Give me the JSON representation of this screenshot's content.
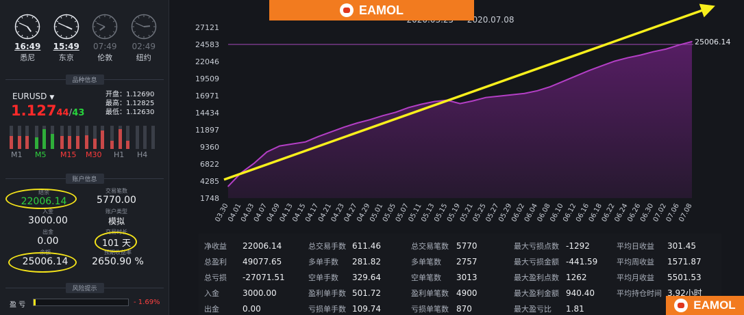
{
  "clocks": [
    {
      "time": "16:49",
      "city": "悉尼",
      "active": true
    },
    {
      "time": "15:49",
      "city": "东京",
      "active": true
    },
    {
      "time": "07:49",
      "city": "伦敦",
      "active": false
    },
    {
      "time": "02:49",
      "city": "纽约",
      "active": false
    }
  ],
  "sections": {
    "symbol_info": "品种信息",
    "account_info": "账户信息",
    "risk": "风险提示"
  },
  "symbol": {
    "name": "EURUSD",
    "price_big": "1.127",
    "price_sub1": "44",
    "price_sep": "/",
    "price_sub2": "43",
    "open": "开盘：1.12690",
    "high": "最高：1.12825",
    "low": "最低：1.12630"
  },
  "timeframes": [
    {
      "label": "M1",
      "up": [
        0.55,
        0.55,
        0.55
      ],
      "color": "#c94848"
    },
    {
      "label": "M5",
      "up": [
        0.5,
        0.85,
        0.65
      ],
      "color": "#2fae3a"
    },
    {
      "label": "M15",
      "up": [
        0.55,
        0.55,
        0.55
      ],
      "color": "#c94848"
    },
    {
      "label": "M30",
      "up": [
        0.6,
        0.45,
        0.8
      ],
      "color": "#c94848"
    },
    {
      "label": "H1",
      "up": [
        0.35,
        0.85,
        0.35
      ],
      "color": "#c94848"
    },
    {
      "label": "H4",
      "up": [
        0,
        0,
        0
      ],
      "color": "#444"
    }
  ],
  "timeframe_colors": [
    "#8c929c",
    "#2fd13f",
    "#ff3b3b",
    "#ff3b3b",
    "#8c929c",
    "#8c929c"
  ],
  "account": {
    "equity_label": "结余",
    "equity": "22006.14",
    "trades_label": "交易笔数",
    "trades": "5770.00",
    "deposit_label": "入金",
    "deposit": "3000.00",
    "acc_type_label": "账户类型",
    "acc_type": "模拟",
    "withdraw_label": "出金",
    "withdraw": "0.00",
    "days_label": "交易时长",
    "days": "101 天",
    "balance_label": "余额",
    "balance": "25006.14",
    "ratio_label": "预期收益率",
    "ratio": "2650.90 %"
  },
  "risk": {
    "label": "盈 亏",
    "value": "- 1.69%"
  },
  "brand": {
    "name": "EAMOL"
  },
  "chart_data": {
    "type": "area",
    "title": "2020.03.25 — 2020.07.08",
    "x": [
      "03.30",
      "04.01",
      "04.03",
      "04.07",
      "04.09",
      "04.13",
      "04.15",
      "04.17",
      "04.21",
      "04.23",
      "04.27",
      "04.29",
      "05.01",
      "05.05",
      "05.07",
      "05.11",
      "05.13",
      "05.15",
      "05.19",
      "05.21",
      "05.25",
      "05.27",
      "05.29",
      "06.02",
      "06.04",
      "06.08",
      "06.10",
      "06.12",
      "06.16",
      "06.18",
      "06.22",
      "06.24",
      "06.26",
      "06.30",
      "07.02",
      "07.06",
      "07.08"
    ],
    "y": [
      3500,
      5500,
      6900,
      8600,
      9500,
      9800,
      10100,
      10900,
      11600,
      12300,
      12900,
      13400,
      14000,
      14500,
      15200,
      15700,
      16100,
      16300,
      15800,
      16200,
      16700,
      16900,
      17100,
      17300,
      17700,
      18300,
      19100,
      19900,
      20700,
      21400,
      22100,
      22600,
      23000,
      23500,
      23900,
      24500,
      25006.14
    ],
    "yticks": [
      1748,
      4285,
      6822,
      9360,
      11897,
      14434,
      16971,
      19509,
      22046,
      24583,
      27121
    ],
    "ylim": [
      1748,
      27121
    ],
    "last_value_label": "25006.14",
    "ref_line": 24583,
    "trend_arrow": true,
    "grid": false,
    "colors": {
      "line": "#b43fc6",
      "fill": "#5a1e68",
      "arrow": "#f8ef1c",
      "ref": "#8a3f9b"
    }
  },
  "stats": [
    [
      {
        "k": "净收益",
        "v": "22006.14"
      },
      {
        "k": "总盈利",
        "v": "49077.65"
      },
      {
        "k": "总亏损",
        "v": "-27071.51"
      },
      {
        "k": "入金",
        "v": "3000.00"
      },
      {
        "k": "出金",
        "v": "0.00"
      }
    ],
    [
      {
        "k": "总交易手数",
        "v": "611.46"
      },
      {
        "k": "多单手数",
        "v": "281.82"
      },
      {
        "k": "空单手数",
        "v": "329.64"
      },
      {
        "k": "盈利单手数",
        "v": "501.72"
      },
      {
        "k": "亏损单手数",
        "v": "109.74"
      }
    ],
    [
      {
        "k": "总交易笔数",
        "v": "5770"
      },
      {
        "k": "多单笔数",
        "v": "2757"
      },
      {
        "k": "空单笔数",
        "v": "3013"
      },
      {
        "k": "盈利单笔数",
        "v": "4900"
      },
      {
        "k": "亏损单笔数",
        "v": "870"
      }
    ],
    [
      {
        "k": "最大亏损点数",
        "v": "-1292"
      },
      {
        "k": "最大亏损金额",
        "v": "-441.59"
      },
      {
        "k": "最大盈利点数",
        "v": "1262"
      },
      {
        "k": "最大盈利金额",
        "v": "940.40"
      },
      {
        "k": "最大盈亏比",
        "v": "1.81"
      }
    ],
    [
      {
        "k": "平均日收益",
        "v": "301.45"
      },
      {
        "k": "平均周收益",
        "v": "1571.87"
      },
      {
        "k": "平均月收益",
        "v": "5501.53"
      },
      {
        "k": "平均持仓时间",
        "v": "3.92小时"
      },
      {
        "k": "",
        "v": ""
      }
    ]
  ]
}
